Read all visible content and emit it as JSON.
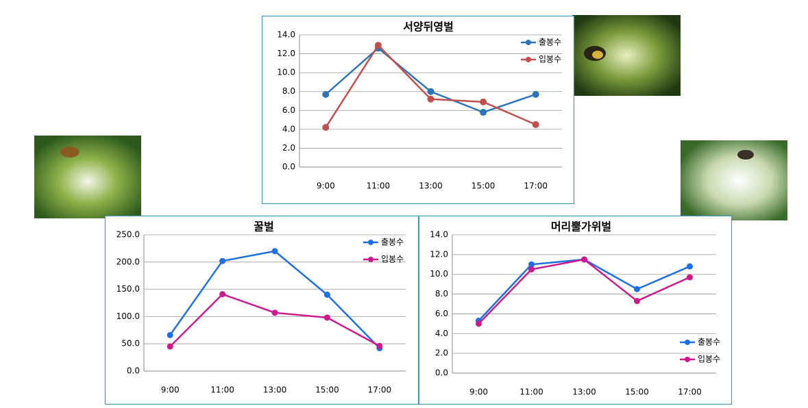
{
  "chart_data": [
    {
      "type": "line",
      "title": "서양뒤영벌",
      "categories": [
        "9:00",
        "11:00",
        "13:00",
        "15:00",
        "17:00"
      ],
      "series": [
        {
          "name": "출봉수",
          "color": "#2e75b6",
          "values": [
            7.7,
            12.6,
            8.0,
            5.8,
            7.7
          ]
        },
        {
          "name": "입봉수",
          "color": "#c0504d",
          "values": [
            4.2,
            12.9,
            7.2,
            6.9,
            4.5
          ]
        }
      ],
      "ylim": [
        0,
        14
      ],
      "yticks": [
        {
          "value": 0,
          "label": "0.0"
        },
        {
          "value": 2,
          "label": "2.0"
        },
        {
          "value": 4,
          "label": "4.0"
        },
        {
          "value": 6,
          "label": "6.0"
        },
        {
          "value": 8,
          "label": "8.0"
        },
        {
          "value": 10,
          "label": "10.0"
        },
        {
          "value": 12,
          "label": "12.0"
        },
        {
          "value": 14,
          "label": "14.0"
        }
      ],
      "grid": true,
      "legend": "upper right"
    },
    {
      "type": "line",
      "title": "꿀벌",
      "categories": [
        "9:00",
        "11:00",
        "13:00",
        "15:00",
        "17:00"
      ],
      "series": [
        {
          "name": "출봉수",
          "color": "#1f6fe0",
          "values": [
            66,
            202,
            220,
            140,
            42
          ]
        },
        {
          "name": "입봉수",
          "color": "#cc1a8c",
          "values": [
            45,
            141,
            107,
            98,
            46
          ]
        }
      ],
      "ylim": [
        0,
        250
      ],
      "yticks": [
        {
          "value": 0,
          "label": "0.0"
        },
        {
          "value": 50,
          "label": "50.0"
        },
        {
          "value": 100,
          "label": "100.0"
        },
        {
          "value": 150,
          "label": "150.0"
        },
        {
          "value": 200,
          "label": "200.0"
        },
        {
          "value": 250,
          "label": "250.0"
        }
      ],
      "grid": true,
      "legend": "upper right"
    },
    {
      "type": "line",
      "title": "머리뿔가위벌",
      "categories": [
        "9:00",
        "11:00",
        "13:00",
        "15:00",
        "17:00"
      ],
      "series": [
        {
          "name": "출봉수",
          "color": "#1f6fe0",
          "values": [
            5.3,
            11.0,
            11.5,
            8.5,
            10.8
          ]
        },
        {
          "name": "입봉수",
          "color": "#cc1a8c",
          "values": [
            5.0,
            10.5,
            11.5,
            7.3,
            9.7
          ]
        }
      ],
      "ylim": [
        0,
        14
      ],
      "yticks": [
        {
          "value": 0,
          "label": "0.0"
        },
        {
          "value": 2,
          "label": "2.0"
        },
        {
          "value": 4,
          "label": "4.0"
        },
        {
          "value": 6,
          "label": "6.0"
        },
        {
          "value": 8,
          "label": "8.0"
        },
        {
          "value": 10,
          "label": "10.0"
        },
        {
          "value": 12,
          "label": "12.0"
        },
        {
          "value": 14,
          "label": "14.0"
        }
      ],
      "grid": true,
      "legend": "lower right"
    }
  ]
}
